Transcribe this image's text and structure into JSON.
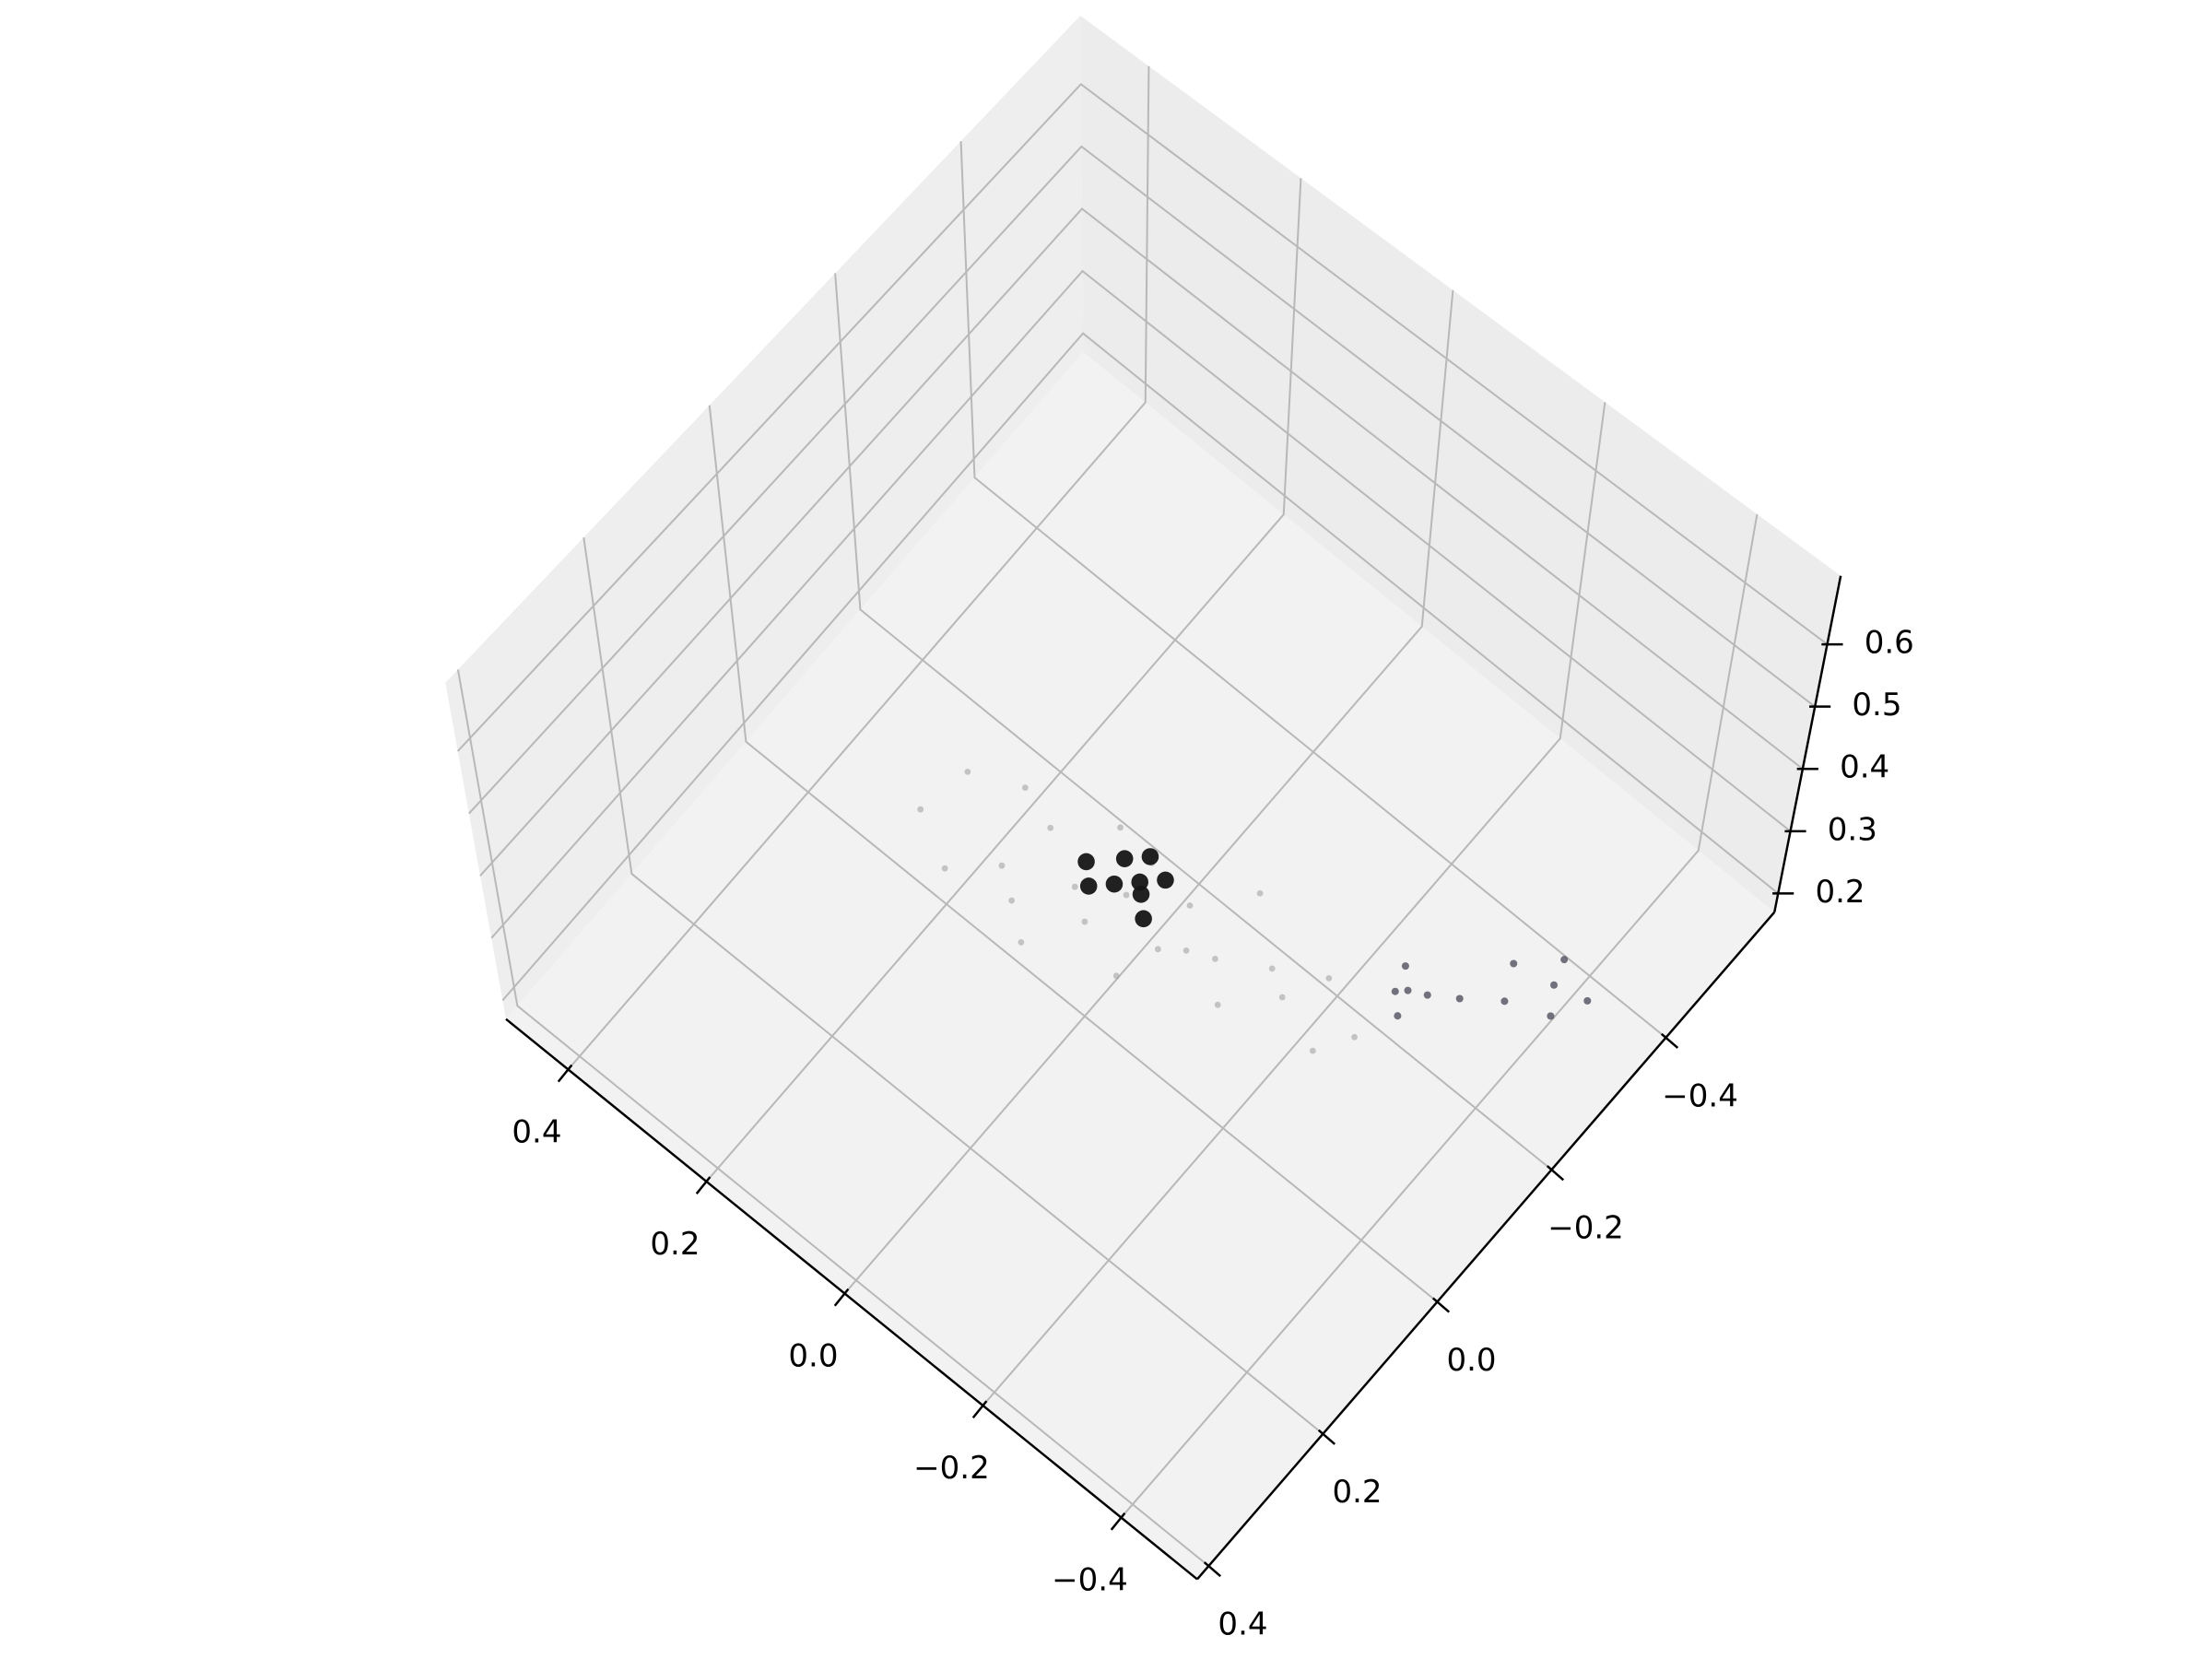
{
  "chart_data": {
    "type": "scatter3d",
    "xlim": [
      -0.51,
      0.49
    ],
    "ylim": [
      -0.59,
      0.42
    ],
    "zlim": [
      0.17,
      0.71
    ],
    "xticks": [
      {
        "value": -0.4,
        "label": "−0.4"
      },
      {
        "value": -0.2,
        "label": "−0.2"
      },
      {
        "value": 0,
        "label": "0.0"
      },
      0.2,
      0.4
    ],
    "yticks": [
      {
        "value": -0.4,
        "label": "−0.4"
      },
      {
        "value": -0.2,
        "label": "−0.2"
      },
      {
        "value": 0,
        "label": "0.0"
      },
      0.2,
      0.4
    ],
    "zticks": [
      0.2,
      0.3,
      0.4,
      0.5,
      0.6
    ],
    "grid": true,
    "series": [
      {
        "color": "#9c9c9c",
        "x": [
          0.282,
          0.265,
          0.218,
          0.214,
          0.167,
          0.149,
          0.099,
          0.104,
          0.051,
          0.042,
          -0.011,
          -0.017,
          -0.056,
          -0.063,
          -0.118,
          -0.133,
          -0.167,
          -0.184,
          -0.228,
          -0.249,
          0.031,
          0.085,
          -0.031,
          0.133,
          -0.082
        ],
        "y": [
          -0.055,
          -0.117,
          -0.02,
          -0.155,
          -0.058,
          -0.121,
          -0.009,
          -0.188,
          -0.062,
          -0.168,
          -0.042,
          -0.163,
          -0.109,
          -0.23,
          -0.089,
          -0.166,
          -0.142,
          -0.204,
          -0.122,
          -0.17,
          -0.11,
          -0.086,
          -0.09,
          -0.034,
          -0.128
        ],
        "z": [
          0.19,
          0.2,
          0.19,
          0.18,
          0.2,
          0.21,
          0.19,
          0.18,
          0.21,
          0.2,
          0.2,
          0.19,
          0.21,
          0.18,
          0.2,
          0.19,
          0.2,
          0.18,
          0.19,
          0.18,
          0.22,
          0.21,
          0.21,
          0.2,
          0.2
        ]
      },
      {
        "color": "#454555",
        "x": [
          -0.25,
          -0.27,
          -0.24,
          -0.28,
          -0.31,
          -0.35,
          -0.38,
          -0.4,
          -0.37,
          -0.42,
          -0.33,
          -0.26
        ],
        "y": [
          -0.24,
          -0.22,
          -0.27,
          -0.26,
          -0.28,
          -0.31,
          -0.36,
          -0.33,
          -0.39,
          -0.37,
          -0.35,
          -0.25
        ],
        "z": [
          0.18,
          0.18,
          0.18,
          0.18,
          0.18,
          0.18,
          0.18,
          0.18,
          0.18,
          0.18,
          0.18,
          0.18
        ]
      },
      {
        "color": "#151515",
        "x": [
          0.02,
          0.04,
          0.0,
          0.05,
          -0.01,
          0.03,
          0.06,
          0.01,
          0.08
        ],
        "y": [
          -0.12,
          -0.1,
          -0.14,
          -0.13,
          -0.09,
          -0.15,
          -0.08,
          -0.11,
          -0.1
        ],
        "z": [
          0.24,
          0.24,
          0.24,
          0.24,
          0.24,
          0.24,
          0.24,
          0.24,
          0.24
        ]
      }
    ]
  }
}
